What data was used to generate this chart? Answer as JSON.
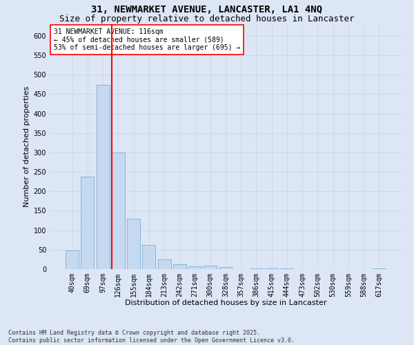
{
  "title_line1": "31, NEWMARKET AVENUE, LANCASTER, LA1 4NQ",
  "title_line2": "Size of property relative to detached houses in Lancaster",
  "xlabel": "Distribution of detached houses by size in Lancaster",
  "ylabel": "Number of detached properties",
  "categories": [
    "40sqm",
    "69sqm",
    "97sqm",
    "126sqm",
    "155sqm",
    "184sqm",
    "213sqm",
    "242sqm",
    "271sqm",
    "300sqm",
    "328sqm",
    "357sqm",
    "386sqm",
    "415sqm",
    "444sqm",
    "473sqm",
    "502sqm",
    "530sqm",
    "559sqm",
    "588sqm",
    "617sqm"
  ],
  "values": [
    48,
    237,
    473,
    300,
    130,
    63,
    25,
    13,
    7,
    8,
    6,
    0,
    1,
    1,
    1,
    0,
    0,
    0,
    0,
    0,
    1
  ],
  "bar_color": "#c5d9f0",
  "bar_edge_color": "#7bafd4",
  "grid_color": "#d0d8e8",
  "background_color": "#dce6f5",
  "vline_color": "red",
  "vline_index": 3,
  "annotation_text": "31 NEWMARKET AVENUE: 116sqm\n← 45% of detached houses are smaller (589)\n53% of semi-detached houses are larger (695) →",
  "annotation_box_facecolor": "white",
  "annotation_box_edgecolor": "red",
  "footnote": "Contains HM Land Registry data © Crown copyright and database right 2025.\nContains public sector information licensed under the Open Government Licence v3.0.",
  "ylim": [
    0,
    630
  ],
  "yticks": [
    0,
    50,
    100,
    150,
    200,
    250,
    300,
    350,
    400,
    450,
    500,
    550,
    600
  ],
  "title1_fontsize": 10,
  "title2_fontsize": 9,
  "axis_label_fontsize": 8,
  "tick_fontsize": 7,
  "annotation_fontsize": 7,
  "footnote_fontsize": 6
}
